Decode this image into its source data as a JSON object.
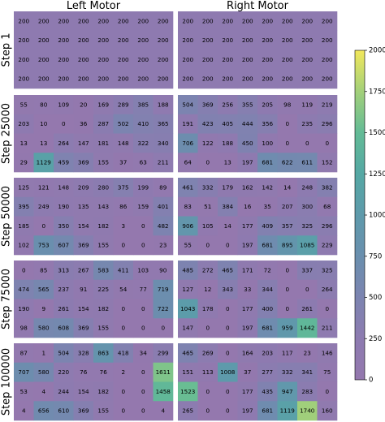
{
  "chart_data": {
    "type": "heatmap",
    "column_titles": [
      "Left Motor",
      "Right Motor"
    ],
    "row_titles": [
      "Step 1",
      "Step 25000",
      "Step 50000",
      "Step 75000",
      "Step 100000"
    ],
    "grid": {
      "rows": 4,
      "cols": 8
    },
    "colorbar": {
      "min": 0,
      "max": 2000,
      "ticks": [
        "0",
        "250",
        "500",
        "750",
        "1000",
        "1250",
        "1500",
        "1750",
        "2000"
      ],
      "colormap": "viridis"
    },
    "panels": [
      {
        "row_index": 0,
        "col_index": 0,
        "values": [
          [
            200,
            200,
            200,
            200,
            200,
            200,
            200,
            200
          ],
          [
            200,
            200,
            200,
            200,
            200,
            200,
            200,
            200
          ],
          [
            200,
            200,
            200,
            200,
            200,
            200,
            200,
            200
          ],
          [
            200,
            200,
            200,
            200,
            200,
            200,
            200,
            200
          ]
        ]
      },
      {
        "row_index": 0,
        "col_index": 1,
        "values": [
          [
            200,
            200,
            200,
            200,
            200,
            200,
            200,
            200
          ],
          [
            200,
            200,
            200,
            200,
            200,
            200,
            200,
            200
          ],
          [
            200,
            200,
            200,
            200,
            200,
            200,
            200,
            200
          ],
          [
            200,
            200,
            200,
            200,
            200,
            200,
            200,
            200
          ]
        ]
      },
      {
        "row_index": 1,
        "col_index": 0,
        "values": [
          [
            55,
            80,
            109,
            20,
            169,
            289,
            385,
            188
          ],
          [
            203,
            10,
            0,
            36,
            287,
            502,
            410,
            365
          ],
          [
            13,
            13,
            264,
            147,
            181,
            148,
            322,
            340
          ],
          [
            29,
            1129,
            459,
            369,
            155,
            37,
            63,
            211
          ]
        ]
      },
      {
        "row_index": 1,
        "col_index": 1,
        "values": [
          [
            504,
            369,
            256,
            355,
            205,
            98,
            119,
            219
          ],
          [
            191,
            423,
            405,
            444,
            356,
            0,
            235,
            296
          ],
          [
            706,
            122,
            188,
            450,
            100,
            0,
            0,
            0
          ],
          [
            64,
            0,
            13,
            197,
            681,
            622,
            611,
            152
          ]
        ]
      },
      {
        "row_index": 2,
        "col_index": 0,
        "values": [
          [
            125,
            121,
            148,
            209,
            280,
            375,
            199,
            89
          ],
          [
            395,
            249,
            190,
            135,
            143,
            86,
            159,
            401
          ],
          [
            185,
            0,
            350,
            154,
            182,
            3,
            0,
            482
          ],
          [
            102,
            753,
            607,
            369,
            155,
            0,
            0,
            23
          ]
        ]
      },
      {
        "row_index": 2,
        "col_index": 1,
        "values": [
          [
            461,
            332,
            179,
            162,
            142,
            14,
            248,
            382
          ],
          [
            83,
            51,
            384,
            16,
            35,
            207,
            300,
            68
          ],
          [
            906,
            105,
            14,
            177,
            409,
            357,
            325,
            296
          ],
          [
            55,
            0,
            0,
            197,
            681,
            895,
            1085,
            229
          ]
        ]
      },
      {
        "row_index": 3,
        "col_index": 0,
        "values": [
          [
            0,
            85,
            313,
            267,
            583,
            411,
            103,
            90
          ],
          [
            474,
            565,
            237,
            91,
            225,
            54,
            77,
            719
          ],
          [
            190,
            9,
            261,
            154,
            182,
            0,
            0,
            722
          ],
          [
            98,
            580,
            608,
            369,
            155,
            0,
            0,
            0
          ]
        ]
      },
      {
        "row_index": 3,
        "col_index": 1,
        "values": [
          [
            485,
            272,
            465,
            171,
            72,
            0,
            337,
            325
          ],
          [
            127,
            12,
            343,
            33,
            344,
            0,
            0,
            264
          ],
          [
            1043,
            178,
            0,
            177,
            400,
            0,
            261,
            0
          ],
          [
            147,
            0,
            0,
            197,
            681,
            959,
            1442,
            211
          ]
        ]
      },
      {
        "row_index": 4,
        "col_index": 0,
        "values": [
          [
            87,
            1,
            504,
            328,
            863,
            418,
            34,
            299
          ],
          [
            707,
            580,
            220,
            76,
            76,
            2,
            0,
            1611
          ],
          [
            53,
            4,
            244,
            154,
            182,
            0,
            0,
            1458
          ],
          [
            4,
            656,
            610,
            369,
            155,
            0,
            0,
            4
          ]
        ]
      },
      {
        "row_index": 4,
        "col_index": 1,
        "values": [
          [
            465,
            269,
            0,
            164,
            203,
            117,
            23,
            146
          ],
          [
            151,
            113,
            1008,
            37,
            277,
            332,
            341,
            75
          ],
          [
            1523,
            0,
            0,
            177,
            435,
            947,
            283,
            0
          ],
          [
            265,
            0,
            0,
            197,
            681,
            1119,
            1740,
            160
          ]
        ]
      }
    ]
  }
}
